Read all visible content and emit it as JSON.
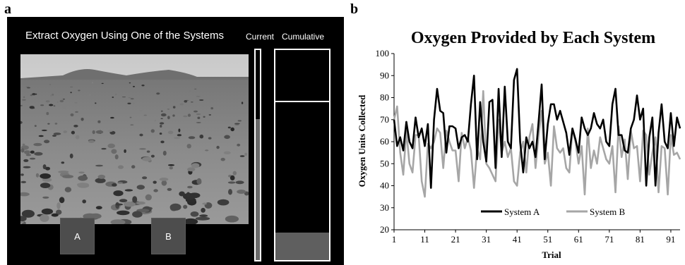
{
  "panels": {
    "a_label": "a",
    "b_label": "b"
  },
  "task": {
    "title": "Extract Oxygen  Using One  of the Systems",
    "current_label": "Current",
    "cumulative_label": "Cumulative",
    "button_a": "A",
    "button_b": "B",
    "current_level": 0.67,
    "cumulative_level": 0.13,
    "cumulative_marker_level": 0.76
  },
  "chart_data": {
    "type": "line",
    "title": "Oxygen Provided by Each System",
    "xlabel": "Trial",
    "ylabel": "Oxygen Units Collected",
    "xlim": [
      1,
      94
    ],
    "ylim": [
      20,
      100
    ],
    "yticks": [
      20,
      30,
      40,
      50,
      60,
      70,
      80,
      90,
      100
    ],
    "xticks": [
      1,
      11,
      21,
      31,
      41,
      51,
      61,
      71,
      81,
      91
    ],
    "legend_position": "bottom-center",
    "grid": false,
    "series": [
      {
        "name": "System A",
        "color": "#000000",
        "values": [
          70,
          58,
          62,
          56,
          69,
          60,
          57,
          71,
          62,
          66,
          58,
          68,
          39,
          70,
          84,
          74,
          73,
          55,
          67,
          67,
          66,
          57,
          62,
          63,
          60,
          77,
          90,
          52,
          78,
          60,
          51,
          78,
          79,
          48,
          84,
          53,
          85,
          60,
          57,
          88,
          93,
          60,
          46,
          62,
          57,
          60,
          53,
          69,
          86,
          52,
          68,
          77,
          77,
          70,
          74,
          69,
          64,
          54,
          66,
          61,
          55,
          71,
          66,
          63,
          66,
          73,
          68,
          66,
          70,
          60,
          58,
          77,
          84,
          63,
          63,
          56,
          55,
          66,
          70,
          81,
          70,
          75,
          40,
          62,
          71,
          40,
          64,
          77,
          60,
          57,
          73,
          58,
          71,
          66
        ]
      },
      {
        "name": "System B",
        "color": "#a6a6a6",
        "values": [
          70,
          76,
          55,
          45,
          65,
          50,
          46,
          63,
          63,
          42,
          35,
          59,
          57,
          60,
          66,
          64,
          48,
          65,
          60,
          56,
          56,
          42,
          64,
          57,
          62,
          56,
          39,
          57,
          52,
          83,
          50,
          48,
          45,
          42,
          70,
          55,
          60,
          53,
          57,
          42,
          40,
          55,
          60,
          46,
          62,
          68,
          48,
          63,
          74,
          50,
          55,
          40,
          67,
          57,
          55,
          57,
          48,
          46,
          66,
          60,
          50,
          58,
          36,
          66,
          48,
          56,
          50,
          62,
          57,
          52,
          50,
          58,
          37,
          67,
          53,
          61,
          43,
          65,
          57,
          58,
          42,
          65,
          63,
          45,
          55,
          62,
          37,
          58,
          57,
          36,
          63,
          54,
          55,
          52
        ]
      }
    ]
  }
}
